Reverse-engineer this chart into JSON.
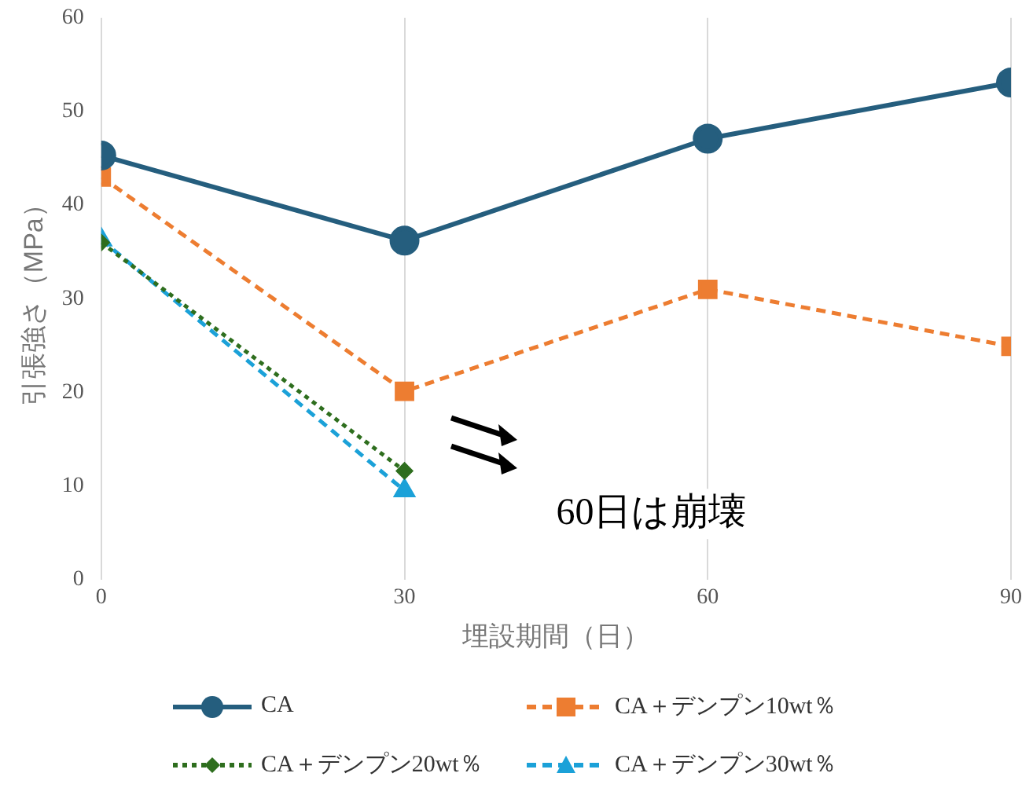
{
  "chart_data": {
    "type": "line",
    "xlabel": "埋設期間（日）",
    "ylabel": "引張強さ（MPa）",
    "x": [
      0,
      30,
      60,
      90
    ],
    "xlim": [
      0,
      90
    ],
    "xticks": [
      0,
      30,
      60,
      90
    ],
    "ylim": [
      0,
      60
    ],
    "yticks": [
      0,
      10,
      20,
      30,
      40,
      50,
      60
    ],
    "grid": "x",
    "legend": "bottom",
    "series": [
      {
        "name": "CA",
        "color": "#255e7e",
        "values": [
          45.3,
          36.2,
          47.1,
          53.1
        ],
        "marker": "circle",
        "line_style": "solid"
      },
      {
        "name": "CA＋デンプン10wt％",
        "color": "#ed7d31",
        "values": [
          43,
          20.1,
          31,
          24.9
        ],
        "marker": "square",
        "line_style": "dashed"
      },
      {
        "name": "CA＋デンプン20wt％",
        "color": "#2e6e1e",
        "values": [
          36,
          11.6,
          null,
          null
        ],
        "marker": "diamond",
        "line_style": "dotted"
      },
      {
        "name": "CA＋デンプン30wt％",
        "color": "#1ba1d8",
        "values": [
          36.3,
          9.5,
          null,
          null
        ],
        "marker": "triangle",
        "line_style": "dashed"
      }
    ],
    "annotations": [
      "60日は崩壊"
    ]
  }
}
